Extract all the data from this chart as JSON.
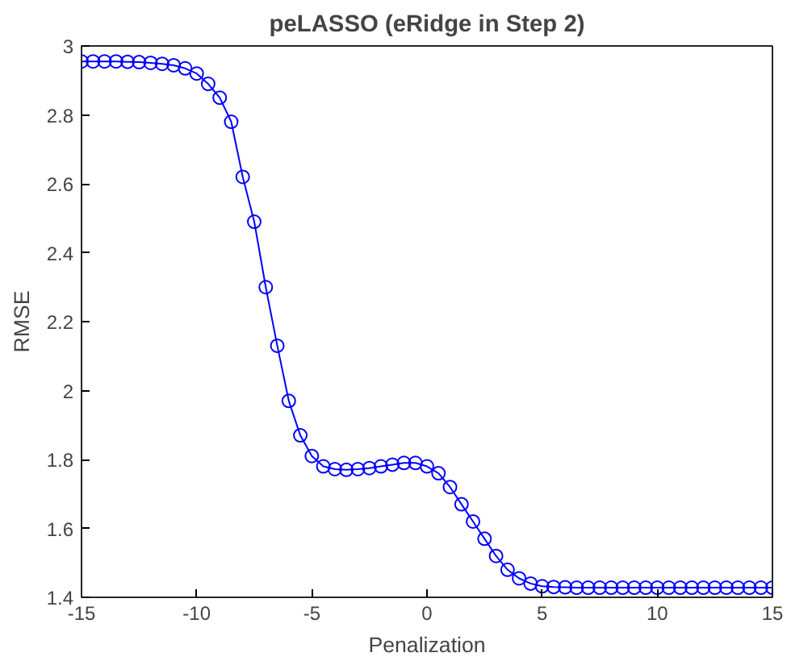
{
  "chart_data": {
    "type": "line",
    "title": "peLASSO (eRidge in Step 2)",
    "xlabel": "Penalization",
    "ylabel": "RMSE",
    "x": [
      -15,
      -14.5,
      -14,
      -13.5,
      -13,
      -12.5,
      -12,
      -11.5,
      -11,
      -10.5,
      -10,
      -9.5,
      -9,
      -8.5,
      -8,
      -7.5,
      -7,
      -6.5,
      -6,
      -5.5,
      -5,
      -4.5,
      -4,
      -3.5,
      -3,
      -2.5,
      -2,
      -1.5,
      -1,
      -0.5,
      0,
      0.5,
      1,
      1.5,
      2,
      2.5,
      3,
      3.5,
      4,
      4.5,
      5,
      5.5,
      6,
      6.5,
      7,
      7.5,
      8,
      8.5,
      9,
      9.5,
      10,
      10.5,
      11,
      11.5,
      12,
      12.5,
      13,
      13.5,
      14,
      14.5,
      15
    ],
    "series": [
      {
        "color": "#0000ff",
        "values": [
          2.955,
          2.955,
          2.955,
          2.955,
          2.954,
          2.953,
          2.951,
          2.948,
          2.944,
          2.935,
          2.92,
          2.89,
          2.85,
          2.78,
          2.62,
          2.49,
          2.3,
          2.13,
          1.97,
          1.87,
          1.81,
          1.78,
          1.772,
          1.77,
          1.772,
          1.775,
          1.78,
          1.785,
          1.79,
          1.79,
          1.78,
          1.76,
          1.72,
          1.67,
          1.62,
          1.57,
          1.52,
          1.48,
          1.455,
          1.44,
          1.432,
          1.43,
          1.429,
          1.428,
          1.428,
          1.428,
          1.428,
          1.428,
          1.428,
          1.428,
          1.428,
          1.428,
          1.428,
          1.428,
          1.428,
          1.428,
          1.428,
          1.428,
          1.428,
          1.428,
          1.428
        ]
      }
    ],
    "xlim": [
      -15,
      15
    ],
    "ylim": [
      1.4,
      3
    ],
    "xticks": [
      -15,
      -10,
      -5,
      0,
      5,
      10,
      15
    ],
    "yticks": [
      1.4,
      1.6,
      1.8,
      2,
      2.2,
      2.4,
      2.6,
      2.8,
      3
    ],
    "grid": false,
    "marker": "circle",
    "line_style": "solid"
  }
}
